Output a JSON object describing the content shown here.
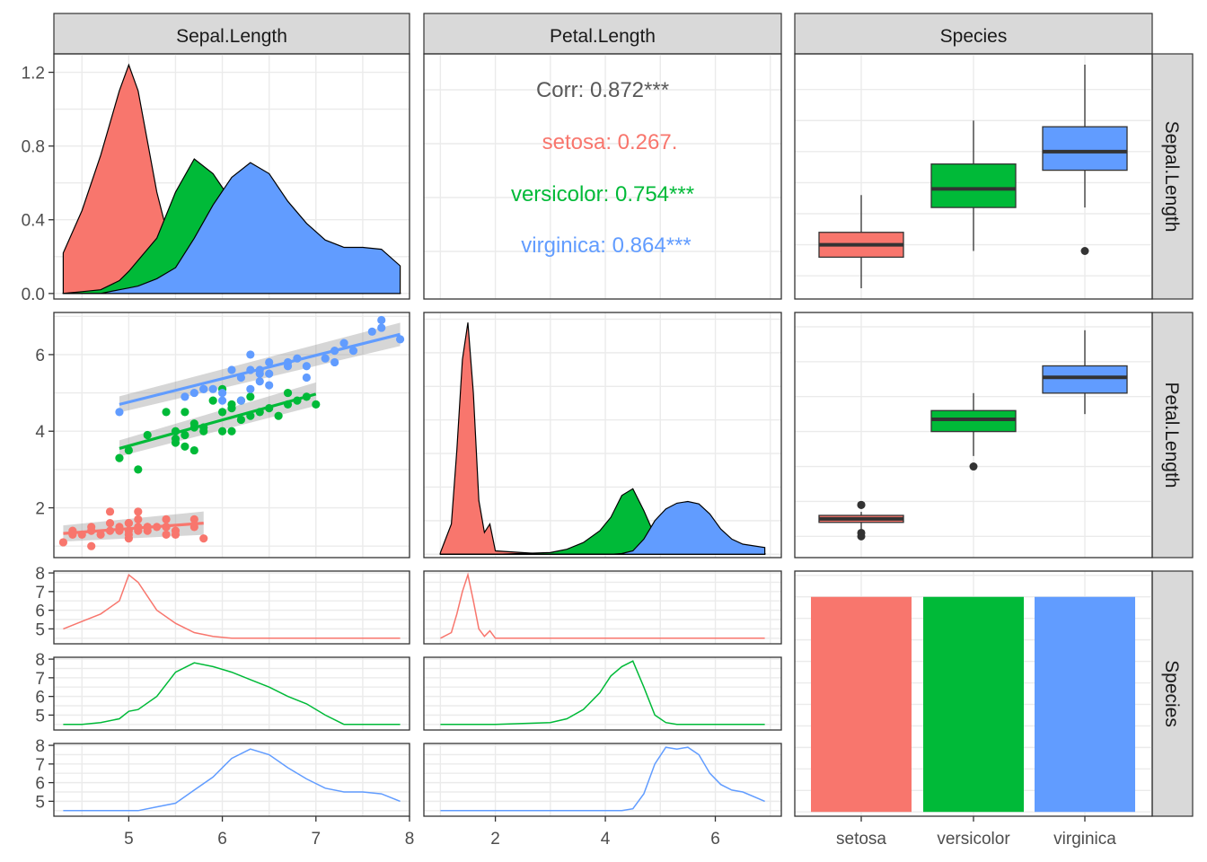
{
  "colors": {
    "setosa": "#F8766D",
    "versicolor": "#00BA38",
    "virginica": "#619CFF",
    "strip_fill": "#D9D9D9",
    "grid": "#EBEBEB",
    "corr_text": "#595959",
    "box_line": "#333333"
  },
  "chart_data": {
    "type": "pairs",
    "title": "",
    "columns": [
      "Sepal.Length",
      "Petal.Length",
      "Species"
    ],
    "rows": [
      "Sepal.Length",
      "Petal.Length",
      "Species"
    ],
    "species": [
      "setosa",
      "versicolor",
      "virginica"
    ],
    "x_axis": {
      "sepal": {
        "range": [
          4.2,
          8.0
        ],
        "ticks": [
          5,
          6,
          7,
          8
        ]
      },
      "petal": {
        "range": [
          0.7,
          7.2
        ],
        "ticks": [
          2,
          4,
          6
        ]
      },
      "species": {
        "ticks": [
          "setosa",
          "versicolor",
          "virginica"
        ]
      }
    },
    "y_axis": {
      "row1": {
        "range": [
          -0.03,
          1.3
        ],
        "ticks": [
          0.0,
          0.4,
          0.8,
          1.2
        ]
      },
      "row2": {
        "range": [
          0.7,
          7.1
        ],
        "ticks": [
          2,
          4,
          6
        ]
      },
      "row3_sub": {
        "range": [
          4.2,
          8.1
        ],
        "ticks": [
          5,
          6,
          7,
          8
        ]
      }
    },
    "density_sepal": {
      "x": [
        4.3,
        4.5,
        4.7,
        4.9,
        5.0,
        5.1,
        5.3,
        5.5,
        5.7,
        5.9,
        6.1,
        6.3,
        6.5,
        6.7,
        6.9,
        7.1,
        7.3,
        7.5,
        7.7,
        7.9
      ],
      "setosa": [
        0.22,
        0.45,
        0.75,
        1.1,
        1.24,
        1.1,
        0.55,
        0.15,
        0.03,
        0.0,
        0.0,
        0.0,
        0.0,
        0.0,
        0.0,
        0.0,
        0.0,
        0.0,
        0.0,
        0.0
      ],
      "versicolor": [
        0.0,
        0.01,
        0.02,
        0.07,
        0.12,
        0.18,
        0.3,
        0.55,
        0.73,
        0.65,
        0.5,
        0.33,
        0.18,
        0.07,
        0.02,
        0.0,
        0.0,
        0.0,
        0.0,
        0.0
      ],
      "virginica": [
        0.0,
        0.0,
        0.0,
        0.02,
        0.03,
        0.04,
        0.08,
        0.14,
        0.3,
        0.48,
        0.63,
        0.71,
        0.65,
        0.5,
        0.38,
        0.29,
        0.25,
        0.25,
        0.24,
        0.15
      ]
    },
    "correlation": {
      "overall": "Corr: 0.872***",
      "setosa": "setosa: 0.267.",
      "versicolor": "versicolor: 0.754***",
      "virginica": "virginica: 0.864***"
    },
    "box_sepal": {
      "setosa": {
        "min": 4.3,
        "q1": 4.8,
        "median": 5.0,
        "q3": 5.2,
        "max": 5.8,
        "outliers": []
      },
      "versicolor": {
        "min": 4.9,
        "q1": 5.6,
        "median": 5.9,
        "q3": 6.3,
        "max": 7.0,
        "outliers": []
      },
      "virginica": {
        "min": 5.6,
        "q1": 6.2,
        "median": 6.5,
        "q3": 6.9,
        "max": 7.9,
        "outliers": [
          4.9
        ]
      }
    },
    "box_yrange_sepal": [
      4.3,
      7.9
    ],
    "scatter": {
      "setosa": {
        "x": [
          4.3,
          4.4,
          4.4,
          4.5,
          4.6,
          4.6,
          4.7,
          4.8,
          4.8,
          4.9,
          5.0,
          5.0,
          5.0,
          5.1,
          5.1,
          5.2,
          5.2,
          5.3,
          5.4,
          5.4,
          5.5,
          5.7,
          5.7,
          5.8,
          4.8,
          5.0,
          5.1,
          5.4,
          4.9,
          5.0,
          4.6,
          5.1,
          5.4,
          5.5,
          5.2
        ],
        "y": [
          1.1,
          1.4,
          1.3,
          1.3,
          1.4,
          1.0,
          1.3,
          1.6,
          1.9,
          1.5,
          1.6,
          1.3,
          1.4,
          1.9,
          1.5,
          1.5,
          1.4,
          1.5,
          1.7,
          1.3,
          1.3,
          1.7,
          1.5,
          1.2,
          1.4,
          1.2,
          1.7,
          1.5,
          1.4,
          1.6,
          1.5,
          1.4,
          1.5,
          1.4,
          1.5
        ]
      },
      "versicolor": {
        "x": [
          4.9,
          5.0,
          5.1,
          5.2,
          5.5,
          5.5,
          5.6,
          5.6,
          5.7,
          5.7,
          5.8,
          5.9,
          6.0,
          6.0,
          6.1,
          6.1,
          6.2,
          6.3,
          6.3,
          6.4,
          6.5,
          6.6,
          6.7,
          6.7,
          6.8,
          6.9,
          7.0,
          5.4,
          5.7,
          6.0,
          5.5,
          6.1,
          5.8,
          5.6,
          6.2
        ],
        "y": [
          3.3,
          3.5,
          3.0,
          3.9,
          4.0,
          3.7,
          4.5,
          3.6,
          4.2,
          3.5,
          4.0,
          4.8,
          4.5,
          5.1,
          4.7,
          4.0,
          4.3,
          4.9,
          4.4,
          4.5,
          4.6,
          4.4,
          5.0,
          4.7,
          4.8,
          4.9,
          4.7,
          4.5,
          4.1,
          4.0,
          3.8,
          4.6,
          4.1,
          3.9,
          4.8
        ]
      },
      "virginica": {
        "x": [
          4.9,
          5.6,
          5.7,
          5.8,
          5.8,
          6.0,
          6.1,
          6.2,
          6.3,
          6.3,
          6.4,
          6.4,
          6.5,
          6.5,
          6.7,
          6.7,
          6.8,
          6.9,
          7.1,
          7.2,
          7.3,
          7.4,
          7.6,
          7.7,
          7.7,
          7.9,
          6.3,
          6.0,
          6.2,
          5.9,
          6.4,
          6.9,
          7.2,
          6.5
        ],
        "y": [
          4.5,
          4.9,
          5.0,
          5.1,
          5.1,
          4.8,
          5.6,
          5.4,
          5.6,
          6.0,
          5.3,
          5.5,
          5.8,
          5.5,
          5.8,
          5.7,
          5.9,
          5.7,
          5.9,
          6.1,
          6.3,
          6.1,
          6.6,
          6.7,
          6.9,
          6.4,
          5.1,
          5.0,
          4.8,
          5.1,
          5.6,
          5.4,
          5.8,
          5.2
        ]
      }
    },
    "regression": {
      "setosa": {
        "x": [
          4.3,
          5.8
        ],
        "y": [
          1.33,
          1.6
        ]
      },
      "versicolor": {
        "x": [
          4.9,
          7.0
        ],
        "y": [
          3.55,
          4.97
        ]
      },
      "virginica": {
        "x": [
          4.9,
          7.9
        ],
        "y": [
          4.7,
          6.53
        ]
      }
    },
    "density_petal": {
      "x": [
        1.0,
        1.2,
        1.3,
        1.4,
        1.5,
        1.6,
        1.7,
        1.8,
        1.9,
        2.0,
        3.0,
        3.3,
        3.6,
        3.9,
        4.1,
        4.3,
        4.5,
        4.7,
        4.9,
        5.1,
        5.3,
        5.5,
        5.7,
        5.9,
        6.1,
        6.3,
        6.5,
        6.9
      ],
      "setosa": [
        0.05,
        0.9,
        3.1,
        5.8,
        6.9,
        4.8,
        1.6,
        0.65,
        0.9,
        0.1,
        0.0,
        0.0,
        0.0,
        0.0,
        0.0,
        0.0,
        0.0,
        0.0,
        0.0,
        0.0,
        0.0,
        0.0,
        0.0,
        0.0,
        0.0,
        0.0,
        0.0,
        0.0
      ],
      "versicolor": [
        0.0,
        0.0,
        0.0,
        0.0,
        0.0,
        0.0,
        0.0,
        0.0,
        0.0,
        0.0,
        0.05,
        0.15,
        0.35,
        0.7,
        1.1,
        1.75,
        1.95,
        1.3,
        0.55,
        0.15,
        0.03,
        0.0,
        0.0,
        0.0,
        0.0,
        0.0,
        0.0,
        0.0
      ],
      "virginica": [
        0.0,
        0.0,
        0.0,
        0.0,
        0.0,
        0.0,
        0.0,
        0.0,
        0.0,
        0.0,
        0.0,
        0.0,
        0.0,
        0.0,
        0.0,
        0.02,
        0.1,
        0.45,
        1.0,
        1.35,
        1.52,
        1.57,
        1.5,
        1.2,
        0.75,
        0.45,
        0.3,
        0.2
      ]
    },
    "density_petal_yrange": [
      -0.1,
      7.2
    ],
    "box_petal": {
      "setosa": {
        "min": 1.1,
        "q1": 1.4,
        "median": 1.5,
        "q3": 1.6,
        "max": 1.7,
        "outliers": [
          1.0,
          1.1,
          1.9,
          1.9
        ]
      },
      "versicolor": {
        "min": 3.3,
        "q1": 4.0,
        "median": 4.35,
        "q3": 4.6,
        "max": 5.1,
        "outliers": [
          3.0
        ]
      },
      "virginica": {
        "min": 4.5,
        "q1": 5.1,
        "median": 5.55,
        "q3": 5.88,
        "max": 6.9,
        "outliers": []
      }
    },
    "box_yrange_petal": [
      0.7,
      7.1
    ],
    "facet_density_sepal": {
      "x": [
        4.3,
        4.5,
        4.7,
        4.9,
        5.0,
        5.1,
        5.3,
        5.5,
        5.7,
        5.9,
        6.1,
        6.3,
        6.5,
        6.7,
        6.9,
        7.1,
        7.3,
        7.5,
        7.7,
        7.9
      ],
      "setosa": [
        5.0,
        5.4,
        5.8,
        6.5,
        7.9,
        7.5,
        6.0,
        5.3,
        4.8,
        4.6,
        4.5,
        4.5,
        4.5,
        4.5,
        4.5,
        4.5,
        4.5,
        4.5,
        4.5,
        4.5
      ],
      "versicolor": [
        4.5,
        4.5,
        4.6,
        4.8,
        5.2,
        5.3,
        6.0,
        7.3,
        7.8,
        7.6,
        7.3,
        6.9,
        6.5,
        6.0,
        5.6,
        5.0,
        4.5,
        4.5,
        4.5,
        4.5
      ],
      "virginica": [
        4.5,
        4.5,
        4.5,
        4.5,
        4.5,
        4.5,
        4.7,
        4.9,
        5.6,
        6.3,
        7.3,
        7.8,
        7.5,
        6.8,
        6.2,
        5.7,
        5.5,
        5.5,
        5.4,
        5.0
      ]
    },
    "facet_density_petal": {
      "x": [
        1.0,
        1.2,
        1.3,
        1.4,
        1.5,
        1.6,
        1.7,
        1.8,
        1.9,
        2.0,
        3.0,
        3.3,
        3.6,
        3.9,
        4.1,
        4.3,
        4.5,
        4.7,
        4.9,
        5.1,
        5.3,
        5.5,
        5.7,
        5.9,
        6.1,
        6.3,
        6.5,
        6.9
      ],
      "setosa": [
        4.5,
        4.8,
        5.8,
        7.0,
        7.9,
        6.5,
        5.0,
        4.6,
        4.9,
        4.5,
        4.5,
        4.5,
        4.5,
        4.5,
        4.5,
        4.5,
        4.5,
        4.5,
        4.5,
        4.5,
        4.5,
        4.5,
        4.5,
        4.5,
        4.5,
        4.5,
        4.5,
        4.5
      ],
      "versicolor": [
        4.5,
        4.5,
        4.5,
        4.5,
        4.5,
        4.5,
        4.5,
        4.5,
        4.5,
        4.5,
        4.6,
        4.8,
        5.3,
        6.2,
        7.1,
        7.6,
        7.9,
        6.5,
        5.0,
        4.6,
        4.5,
        4.5,
        4.5,
        4.5,
        4.5,
        4.5,
        4.5,
        4.5
      ],
      "virginica": [
        4.5,
        4.5,
        4.5,
        4.5,
        4.5,
        4.5,
        4.5,
        4.5,
        4.5,
        4.5,
        4.5,
        4.5,
        4.5,
        4.5,
        4.5,
        4.5,
        4.6,
        5.4,
        7.0,
        7.9,
        7.8,
        7.9,
        7.5,
        6.5,
        5.9,
        5.6,
        5.5,
        5.0
      ]
    },
    "counts": {
      "setosa": 50,
      "versicolor": 50,
      "virginica": 50
    },
    "counts_yrange": [
      -1,
      56
    ],
    "grid": true,
    "legend": "none"
  }
}
